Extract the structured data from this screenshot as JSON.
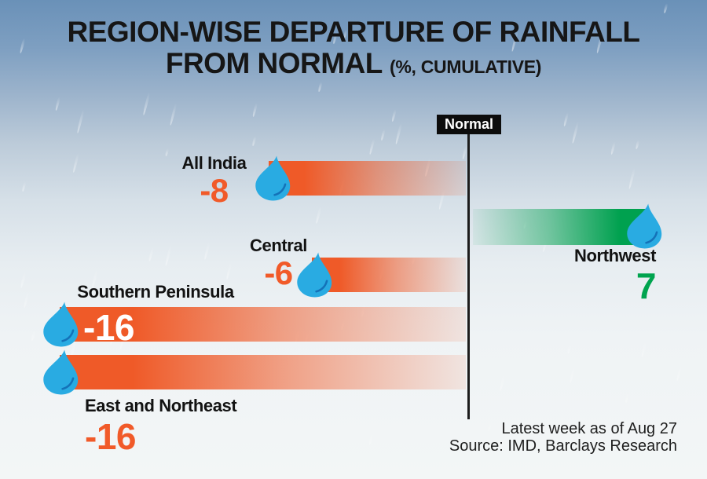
{
  "title": {
    "line1": "REGION-WISE DEPARTURE OF RAINFALL",
    "line2_main": "FROM NORMAL ",
    "line2_unit": "(%, CUMULATIVE)"
  },
  "baseline": {
    "label": "Normal"
  },
  "bars": [
    {
      "region": "All India",
      "value": -8,
      "value_label": "-8"
    },
    {
      "region": "Northwest",
      "value": 7,
      "value_label": "7"
    },
    {
      "region": "Central",
      "value": -6,
      "value_label": "-6"
    },
    {
      "region": "Southern Peninsula",
      "value": -16,
      "value_label": "-16"
    },
    {
      "region": "East and Northeast",
      "value": -16,
      "value_label": "-16"
    }
  ],
  "footer": {
    "note": "Latest week as of Aug 27",
    "source": "Source: IMD, Barclays Research"
  },
  "colors": {
    "negative_bar": "#ef5a28",
    "positive_bar": "#00a14f",
    "value_negative": "#f15a29",
    "value_positive": "#00a44f",
    "droplet": "#29abe2",
    "droplet_shine": "#1472b8",
    "normal_line": "#1c1c1c",
    "background_top": "#6a91b8",
    "background_bottom": "#f3f6f6"
  },
  "chart_data": {
    "type": "bar",
    "orientation": "horizontal",
    "title": "REGION-WISE DEPARTURE OF RAINFALL FROM NORMAL",
    "unit": "(%, CUMULATIVE)",
    "baseline_label": "Normal",
    "categories": [
      "All India",
      "Northwest",
      "Central",
      "Southern Peninsula",
      "East and Northeast"
    ],
    "values": [
      -8,
      7,
      -6,
      -16,
      -16
    ],
    "xlim": [
      -18,
      8
    ],
    "grid": false,
    "legend": "none",
    "value_labels_shown": true,
    "notes": [
      "Latest week as of Aug 27",
      "Source: IMD, Barclays Research"
    ]
  }
}
